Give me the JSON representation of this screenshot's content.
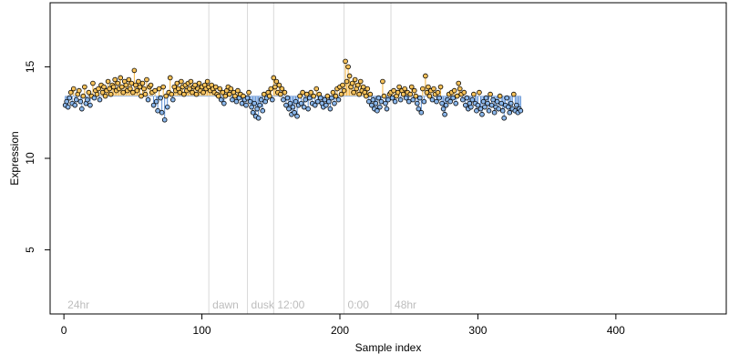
{
  "chart_data": {
    "type": "scatter",
    "title": "",
    "xlabel": "Sample index",
    "ylabel": "Expression",
    "xlim": [
      -10,
      480
    ],
    "ylim": [
      1.5,
      18.5
    ],
    "baseline": 13.4,
    "x_ticks": [
      0,
      100,
      200,
      300,
      400
    ],
    "y_ticks": [
      5,
      10,
      15
    ],
    "grid": false,
    "legend": "none",
    "colors": {
      "above": "#f5b540",
      "below": "#5a8fd6",
      "point_stroke": "#000000",
      "point_fill_above": "#f7c25a",
      "point_fill_below": "#8ab6ea",
      "annotation_line": "#d8d8d8",
      "annotation_text": "#bdbdbd"
    },
    "annotations": [
      {
        "label": "24hr",
        "x": 0
      },
      {
        "label": "dawn",
        "x": 105
      },
      {
        "label": "dusk",
        "x": 133
      },
      {
        "label": "12:00",
        "x": 152
      },
      {
        "label": "0:00",
        "x": 203
      },
      {
        "label": "48hr",
        "x": 237
      }
    ],
    "series": [
      {
        "values": [
          12.9,
          13.1,
          12.8,
          13.3,
          13.6,
          13.0,
          13.8,
          12.9,
          13.2,
          13.5,
          13.7,
          13.1,
          12.7,
          13.4,
          13.9,
          13.0,
          13.2,
          13.6,
          12.9,
          13.4,
          14.1,
          13.3,
          13.7,
          13.5,
          13.8,
          13.2,
          14.0,
          13.6,
          13.9,
          13.4,
          13.7,
          14.2,
          13.8,
          13.5,
          14.0,
          13.9,
          14.3,
          13.7,
          14.1,
          13.8,
          14.4,
          13.9,
          13.6,
          14.2,
          14.0,
          13.7,
          14.3,
          13.8,
          14.1,
          13.6,
          14.8,
          14.0,
          13.7,
          14.2,
          13.9,
          13.4,
          14.1,
          13.8,
          13.5,
          14.3,
          13.2,
          13.9,
          14.0,
          13.6,
          12.9,
          13.7,
          13.1,
          12.6,
          13.8,
          13.3,
          12.5,
          13.9,
          12.1,
          13.4,
          12.8,
          13.6,
          14.4,
          13.5,
          13.2,
          13.9,
          13.7,
          14.1,
          13.8,
          13.6,
          14.2,
          13.9,
          13.5,
          14.0,
          13.7,
          14.1,
          13.8,
          14.2,
          13.6,
          13.9,
          14.0,
          13.5,
          13.8,
          14.1,
          13.7,
          13.9,
          13.6,
          14.0,
          13.8,
          14.2,
          13.9,
          13.7,
          14.0,
          13.8,
          13.6,
          13.9,
          13.5,
          13.4,
          13.8,
          13.2,
          13.6,
          13.0,
          13.4,
          13.7,
          13.9,
          13.5,
          13.8,
          13.2,
          13.6,
          13.4,
          13.1,
          13.7,
          13.3,
          13.5,
          13.0,
          13.4,
          13.2,
          12.9,
          13.3,
          13.6,
          13.1,
          12.8,
          12.5,
          13.0,
          12.3,
          12.7,
          12.2,
          12.9,
          13.2,
          12.6,
          13.5,
          13.1,
          13.3,
          13.6,
          13.4,
          13.8,
          13.2,
          14.4,
          13.9,
          14.2,
          13.6,
          14.0,
          13.5,
          13.8,
          13.2,
          13.6,
          12.9,
          13.3,
          12.7,
          13.0,
          12.4,
          12.8,
          12.5,
          13.1,
          12.3,
          12.9,
          13.4,
          13.0,
          13.6,
          12.8,
          13.2,
          13.5,
          12.7,
          13.3,
          13.6,
          13.0,
          13.4,
          12.9,
          13.8,
          13.1,
          13.5,
          13.3,
          13.0,
          12.8,
          13.2,
          12.9,
          13.4,
          13.1,
          12.7,
          13.3,
          13.6,
          13.0,
          13.4,
          13.8,
          13.2,
          13.9,
          13.5,
          14.0,
          13.7,
          15.3,
          14.2,
          15.0,
          14.5,
          13.9,
          14.1,
          13.6,
          14.3,
          13.8,
          14.0,
          13.5,
          14.2,
          13.7,
          13.9,
          13.6,
          13.4,
          13.8,
          13.1,
          13.5,
          12.9,
          13.2,
          12.7,
          13.0,
          12.6,
          13.3,
          12.8,
          13.1,
          14.2,
          13.4,
          13.0,
          12.7,
          13.2,
          13.5,
          13.6,
          13.3,
          13.7,
          13.1,
          13.4,
          13.6,
          13.9,
          13.2,
          13.7,
          13.5,
          13.8,
          13.3,
          13.6,
          13.1,
          13.5,
          13.9,
          13.2,
          13.7,
          13.4,
          13.0,
          12.7,
          13.3,
          12.5,
          13.8,
          13.1,
          14.5,
          13.6,
          13.9,
          13.4,
          13.7,
          13.2,
          13.8,
          13.5,
          13.1,
          13.6,
          13.3,
          13.9,
          13.0,
          12.7,
          12.4,
          12.9,
          13.2,
          13.5,
          13.1,
          13.6,
          13.3,
          13.7,
          13.0,
          13.4,
          14.1,
          13.8,
          13.5,
          13.2,
          13.6,
          12.9,
          13.3,
          12.7,
          13.0,
          12.8,
          13.2,
          13.5,
          13.0,
          12.6,
          12.9,
          13.6,
          12.7,
          12.4,
          13.1,
          12.8,
          13.3,
          13.0,
          12.6,
          13.5,
          12.9,
          13.2,
          12.5,
          12.8,
          13.1,
          12.7,
          13.4,
          13.0,
          12.6,
          12.2,
          12.9,
          13.3,
          12.8,
          12.5,
          13.0,
          12.7,
          13.5,
          12.6,
          12.9,
          12.5,
          12.7,
          12.6
        ]
      }
    ]
  }
}
